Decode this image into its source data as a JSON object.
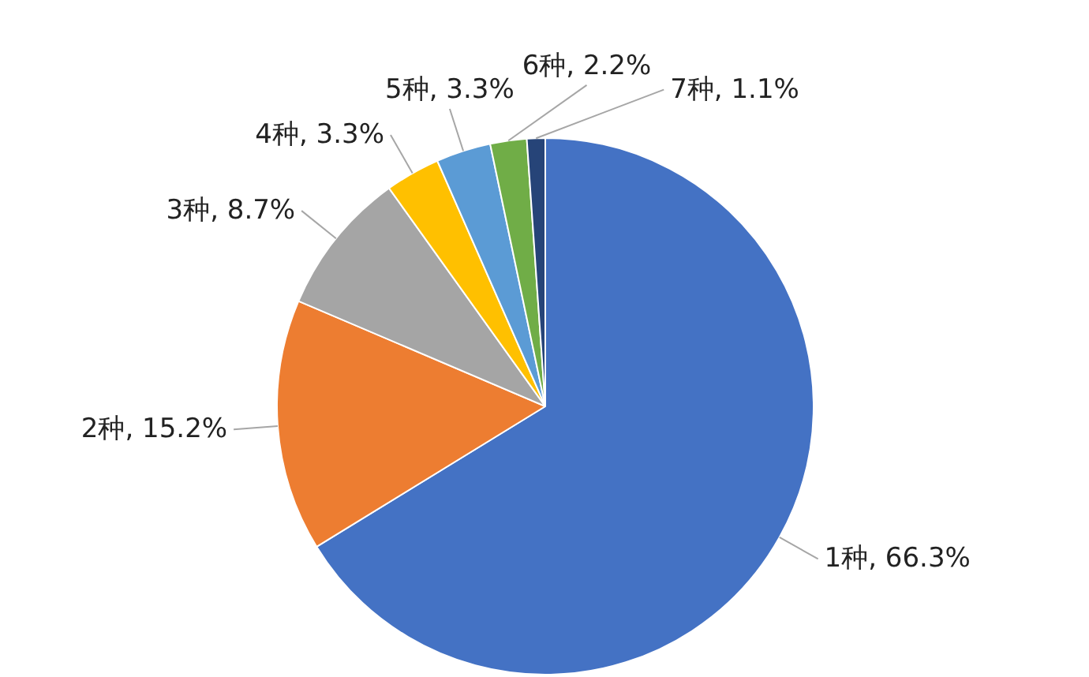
{
  "chart_data": {
    "type": "pie",
    "categories": [
      "1种",
      "2种",
      "3种",
      "4种",
      "5种",
      "6种",
      "7种"
    ],
    "values": [
      66.3,
      15.2,
      8.7,
      3.3,
      3.3,
      2.2,
      1.1
    ],
    "colors": [
      "#4472c4",
      "#ed7d31",
      "#a5a5a5",
      "#ffc000",
      "#5b9bd5",
      "#70ad47",
      "#264478"
    ],
    "value_labels": [
      "66.3%",
      "15.2%",
      "8.7%",
      "3.3%",
      "3.3%",
      "2.2%",
      "1.1%"
    ]
  }
}
